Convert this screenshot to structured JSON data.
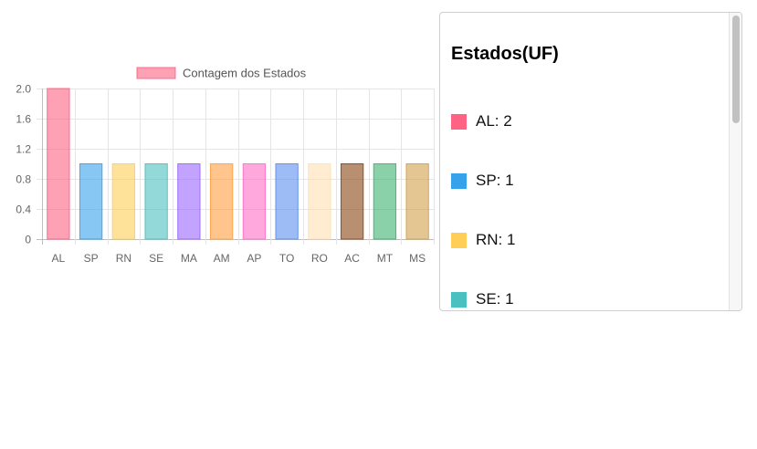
{
  "chart_data": {
    "type": "bar",
    "categories": [
      "AL",
      "SP",
      "RN",
      "SE",
      "MA",
      "AM",
      "AP",
      "TO",
      "RO",
      "AC",
      "MT",
      "MS"
    ],
    "series": [
      {
        "name": "Contagem dos Estados",
        "values": [
          2,
          1,
          1,
          1,
          1,
          1,
          1,
          1,
          1,
          1,
          1,
          1
        ]
      }
    ],
    "colors": [
      "#ff6384",
      "#36a2eb",
      "#ffce56",
      "#4bc0c0",
      "#9966ff",
      "#ff9f40",
      "#ff6ec7",
      "#5b8def",
      "#ffe0b2",
      "#8b4513",
      "#3cb371",
      "#d2a04b"
    ],
    "legend_color": "#ff6384",
    "ylim": [
      0,
      2
    ],
    "yticks": [
      "0",
      "0.4",
      "0.8",
      "1.2",
      "1.6",
      "2.0"
    ],
    "grid": true,
    "legend_position": "top"
  },
  "panel": {
    "title": "Estados(UF)",
    "items": [
      {
        "label": "AL: 2",
        "color": "#ff6384"
      },
      {
        "label": "SP: 1",
        "color": "#36a2eb"
      },
      {
        "label": "RN: 1",
        "color": "#ffce56"
      },
      {
        "label": "SE: 1",
        "color": "#4bc0c0"
      }
    ]
  }
}
